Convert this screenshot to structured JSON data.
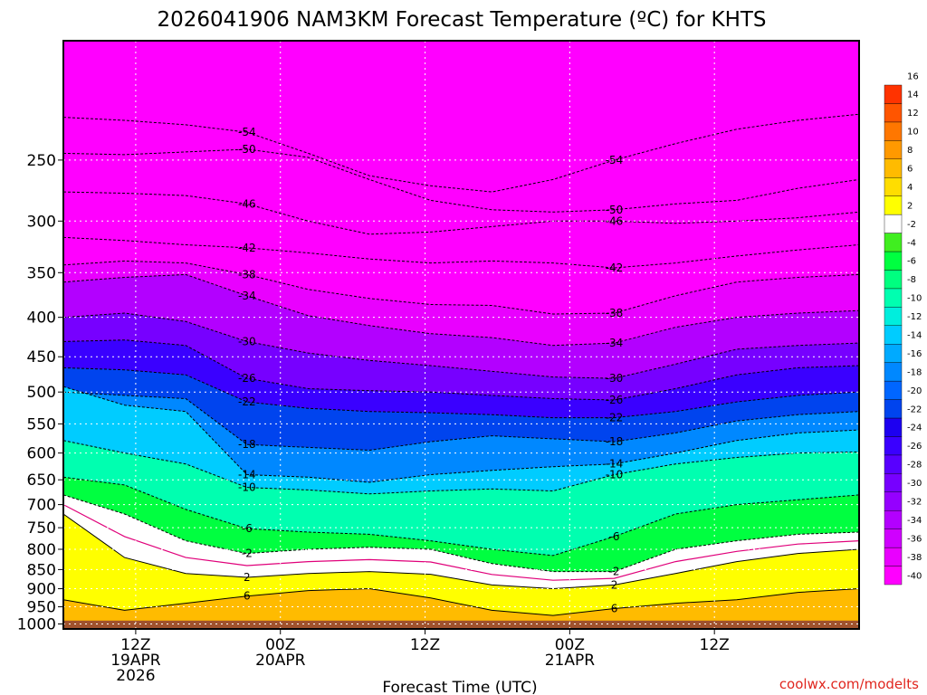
{
  "chart_data": {
    "type": "heatmap",
    "title": "2026041906 NAM3KM Forecast Temperature (ºC) for KHTS",
    "xlabel": "Forecast Time (UTC)",
    "ylabel": "",
    "x_range_hours": [
      0,
      66
    ],
    "y_range_hpa": [
      175,
      1015
    ],
    "grid": true,
    "legend_position": "right",
    "x_ticks": [
      {
        "hour": 6,
        "lines": [
          "12Z",
          "19APR",
          "2026"
        ]
      },
      {
        "hour": 18,
        "lines": [
          "00Z",
          "20APR"
        ]
      },
      {
        "hour": 30,
        "lines": [
          "12Z"
        ]
      },
      {
        "hour": 42,
        "lines": [
          "00Z",
          "21APR"
        ]
      },
      {
        "hour": 54,
        "lines": [
          "12Z"
        ]
      }
    ],
    "y_ticks": [
      {
        "p": 250,
        "label": "250"
      },
      {
        "p": 300,
        "label": "300"
      },
      {
        "p": 350,
        "label": "350"
      },
      {
        "p": 400,
        "label": "400"
      },
      {
        "p": 450,
        "label": "450"
      },
      {
        "p": 500,
        "label": "500"
      },
      {
        "p": 550,
        "label": "550"
      },
      {
        "p": 600,
        "label": "600"
      },
      {
        "p": 650,
        "label": "650"
      },
      {
        "p": 700,
        "label": "700"
      },
      {
        "p": 750,
        "label": "750"
      },
      {
        "p": 800,
        "label": "800"
      },
      {
        "p": 850,
        "label": "850"
      },
      {
        "p": 900,
        "label": "900"
      },
      {
        "p": 950,
        "label": "950"
      },
      {
        "p": 1000,
        "label": "1000"
      }
    ],
    "ground_level_hpa": 990,
    "ground_color": "#a0522d",
    "colorbar_levels": [
      -40,
      -38,
      -36,
      -34,
      -32,
      -30,
      -28,
      -26,
      -24,
      -22,
      -20,
      -18,
      -16,
      -14,
      -12,
      -10,
      -8,
      -6,
      -4,
      -2,
      2,
      4,
      6,
      8,
      10,
      12,
      14,
      16
    ],
    "colorbar_colors": [
      "#ff00ff",
      "#e900ff",
      "#cf00ff",
      "#b300ff",
      "#9500ff",
      "#7700ff",
      "#5800ff",
      "#3a00ff",
      "#1d00f0",
      "#0044ee",
      "#0066ff",
      "#0088ff",
      "#00aaff",
      "#00ccff",
      "#00eedd",
      "#00ffb0",
      "#00ff80",
      "#00ff40",
      "#40ee20",
      "#ffffff",
      "#ffff00",
      "#ffdd00",
      "#ffbb00",
      "#ff9900",
      "#ff7700",
      "#ff5500",
      "#ff3300"
    ],
    "colorbar_labels": [
      "-40",
      "-38",
      "-36",
      "-34",
      "-32",
      "-30",
      "-28",
      "-26",
      "-24",
      "-22",
      "-20",
      "-18",
      "-16",
      "-14",
      "-12",
      "-10",
      "-8",
      "-6",
      "-4",
      "-2",
      "2",
      "4",
      "6",
      "8",
      "10",
      "12",
      "14",
      "16"
    ],
    "isotherms": [
      {
        "t": -54,
        "label": "-54",
        "p": [
          220,
          222,
          225,
          230,
          245,
          262,
          270,
          275,
          265,
          250,
          238,
          228,
          222,
          218
        ]
      },
      {
        "t": -50,
        "label": "-50",
        "p": [
          245,
          246,
          244,
          242,
          248,
          265,
          282,
          290,
          292,
          290,
          285,
          282,
          272,
          265
        ]
      },
      {
        "t": -46,
        "label": "-46",
        "p": [
          275,
          276,
          278,
          285,
          300,
          312,
          310,
          305,
          300,
          300,
          302,
          300,
          297,
          292
        ]
      },
      {
        "t": -42,
        "label": "-42",
        "p": [
          315,
          318,
          322,
          325,
          330,
          336,
          340,
          338,
          340,
          345,
          340,
          333,
          327,
          322
        ]
      },
      {
        "t": -38,
        "label": "-38",
        "p": [
          342,
          338,
          340,
          352,
          368,
          378,
          385,
          386,
          396,
          395,
          375,
          360,
          355,
          352
        ]
      },
      {
        "t": -34,
        "label": "-34",
        "p": [
          360,
          355,
          352,
          375,
          398,
          410,
          420,
          425,
          435,
          432,
          412,
          400,
          395,
          392
        ]
      },
      {
        "t": -30,
        "label": "-30",
        "p": [
          400,
          395,
          405,
          430,
          445,
          455,
          462,
          470,
          478,
          480,
          460,
          440,
          435,
          432
        ]
      },
      {
        "t": -26,
        "label": "-26",
        "p": [
          430,
          428,
          435,
          480,
          495,
          498,
          500,
          505,
          510,
          512,
          495,
          475,
          465,
          462
        ]
      },
      {
        "t": -22,
        "label": "-22",
        "p": [
          465,
          468,
          475,
          515,
          525,
          530,
          532,
          535,
          540,
          540,
          530,
          515,
          505,
          500
        ]
      },
      {
        "t": -18,
        "label": "-18",
        "p": [
          500,
          505,
          510,
          585,
          590,
          595,
          580,
          570,
          575,
          580,
          565,
          545,
          535,
          530
        ]
      },
      {
        "t": -14,
        "label": "-14",
        "p": [
          492,
          520,
          530,
          640,
          645,
          655,
          640,
          632,
          625,
          620,
          600,
          578,
          565,
          560
        ]
      },
      {
        "t": -10,
        "label": "-10",
        "p": [
          578,
          600,
          620,
          665,
          670,
          678,
          672,
          668,
          672,
          640,
          620,
          608,
          600,
          598
        ]
      },
      {
        "t": -6,
        "label": "-6",
        "p": [
          645,
          660,
          710,
          752,
          760,
          765,
          780,
          800,
          815,
          770,
          720,
          700,
          690,
          680
        ]
      },
      {
        "t": -2,
        "label": "-2",
        "p": [
          680,
          720,
          780,
          810,
          800,
          795,
          800,
          835,
          855,
          855,
          800,
          780,
          765,
          760
        ]
      },
      {
        "t": 2,
        "label": "2",
        "p": [
          720,
          820,
          860,
          870,
          860,
          855,
          862,
          890,
          900,
          890,
          860,
          830,
          810,
          800
        ]
      },
      {
        "t": 6,
        "label": "6",
        "p": [
          930,
          960,
          940,
          920,
          905,
          900,
          925,
          960,
          975,
          955,
          940,
          930,
          910,
          900
        ]
      }
    ]
  }
}
